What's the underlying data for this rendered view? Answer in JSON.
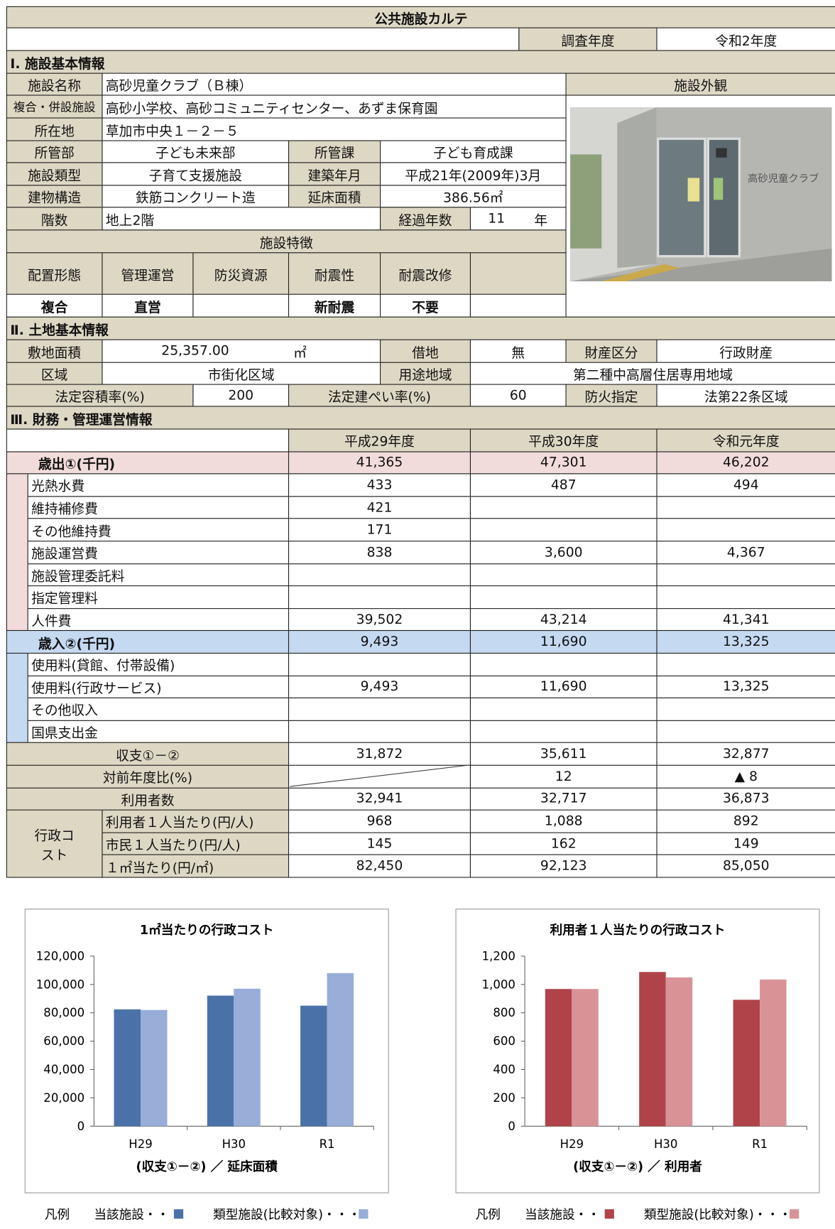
{
  "title": "公共施設カルテ",
  "survey": {
    "label": "調査年度",
    "value": "令和2年度"
  },
  "facility": {
    "heading": "Ⅰ. 施設基本情報",
    "name": {
      "label": "施設名称",
      "value": "高砂児童クラブ（Ｂ棟）"
    },
    "complex": {
      "label": "複合・併設施設",
      "value": "高砂小学校、高砂コミュニティセンター、あずま保育園"
    },
    "address": {
      "label": "所在地",
      "value": "草加市中央１－２－５"
    },
    "dept": {
      "label": "所管部",
      "value": "子ども未来部"
    },
    "section": {
      "label": "所管課",
      "value": "子ども育成課"
    },
    "kind": {
      "label": "施設類型",
      "value": "子育て支援施設"
    },
    "built": {
      "label": "建築年月",
      "value": "平成21年(2009年)3月"
    },
    "structure": {
      "label": "建物構造",
      "value": "鉄筋コンクリート造"
    },
    "floor_area": {
      "label": "延床面積",
      "value": "386.56㎡"
    },
    "floors": {
      "label": "階数",
      "value": "地上2階"
    },
    "age": {
      "label": "経過年数",
      "value": 11,
      "unit": "年"
    },
    "photo_label": "施設外観",
    "photo_sign": "高砂児童クラブ",
    "features": {
      "heading": "施設特徴",
      "labels": [
        "配置形態",
        "管理運営",
        "防災資源",
        "耐震性",
        "耐震改修"
      ],
      "values": [
        "複合",
        "直営",
        null,
        "新耐震",
        "不要"
      ]
    }
  },
  "land": {
    "heading": "Ⅱ. 土地基本情報",
    "site_area": {
      "label": "敷地面積",
      "value": "25,357.00",
      "unit": "㎡"
    },
    "lease": {
      "label": "借地",
      "value": "無"
    },
    "property": {
      "label": "財産区分",
      "value": "行政財産"
    },
    "zone": {
      "label": "区域",
      "value": "市街化区域"
    },
    "use_district": {
      "label": "用途地域",
      "value": "第二種中高層住居専用地域"
    },
    "far": {
      "label": "法定容積率(%)",
      "value": 200
    },
    "bcr": {
      "label": "法定建ぺい率(%)",
      "value": 60
    },
    "fire": {
      "label": "防火指定",
      "value": "法第22条区域"
    }
  },
  "finance": {
    "heading": "Ⅲ. 財務・管理運営情報",
    "years": [
      "平成29年度",
      "平成30年度",
      "令和元年度"
    ],
    "expenditure": {
      "label": "歳出①(千円)",
      "values": [
        "41,365",
        "47,301",
        "46,202"
      ],
      "items": [
        {
          "label": "光熱水費",
          "values": [
            "433",
            "487",
            "494"
          ]
        },
        {
          "label": "維持補修費",
          "values": [
            "421",
            null,
            null
          ]
        },
        {
          "label": "その他維持費",
          "values": [
            "171",
            null,
            null
          ]
        },
        {
          "label": "施設運営費",
          "values": [
            "838",
            "3,600",
            "4,367"
          ]
        },
        {
          "label": "施設管理委託料",
          "values": [
            null,
            null,
            null
          ]
        },
        {
          "label": "指定管理料",
          "values": [
            null,
            null,
            null
          ]
        },
        {
          "label": "人件費",
          "values": [
            "39,502",
            "43,214",
            "41,341"
          ]
        }
      ]
    },
    "revenue": {
      "label": "歳入②(千円)",
      "values": [
        "9,493",
        "11,690",
        "13,325"
      ],
      "items": [
        {
          "label": "使用料(貸館、付帯設備)",
          "values": [
            null,
            null,
            null
          ]
        },
        {
          "label": "使用料(行政サービス)",
          "values": [
            "9,493",
            "11,690",
            "13,325"
          ]
        },
        {
          "label": "その他収入",
          "values": [
            null,
            null,
            null
          ]
        },
        {
          "label": "国県支出金",
          "values": [
            null,
            null,
            null
          ]
        }
      ]
    },
    "balance": {
      "label": "収支①－②",
      "values": [
        "31,872",
        "35,611",
        "32,877"
      ]
    },
    "yoy": {
      "label": "対前年度比(%)",
      "values": [
        null,
        "12",
        "▲ 8"
      ]
    },
    "users": {
      "label": "利用者数",
      "values": [
        "32,941",
        "32,717",
        "36,873"
      ]
    },
    "admin_cost": {
      "label": "行政コスト",
      "items": [
        {
          "label": "利用者１人当たり(円/人)",
          "values": [
            "968",
            "1,088",
            "892"
          ]
        },
        {
          "label": "市民１人当たり(円/人)",
          "values": [
            "145",
            "162",
            "149"
          ]
        },
        {
          "label": "１㎡当たり(円/㎡)",
          "values": [
            "82,450",
            "92,123",
            "85,050"
          ]
        }
      ]
    }
  },
  "chart_data": [
    {
      "type": "bar",
      "title": "1㎡当たりの行政コスト",
      "xlabel": "(収支①－②) ／ 延床面積",
      "categories": [
        "H29",
        "H30",
        "R1"
      ],
      "series": [
        {
          "name": "当該施設・・・",
          "color": "#4a72a8",
          "values": [
            82450,
            92123,
            85050
          ]
        },
        {
          "name": "類型施設(比較対象)・・・",
          "color": "#98aed8",
          "values": [
            82000,
            97000,
            108000
          ]
        }
      ],
      "ylim": [
        0,
        120000
      ],
      "yticks": [
        0,
        {
          "value": 20000,
          "label": "20,000"
        },
        {
          "value": 40000,
          "label": "40,000"
        },
        {
          "value": 60000,
          "label": "60,000"
        },
        {
          "value": 80000,
          "label": "80,000"
        },
        {
          "value": 100000,
          "label": "100,000"
        },
        {
          "value": 120000,
          "label": "120,000"
        }
      ],
      "legend_title": "凡例"
    },
    {
      "type": "bar",
      "title": "利用者１人当たりの行政コスト",
      "xlabel": "(収支①－②) ／ 利用者",
      "categories": [
        "H29",
        "H30",
        "R1"
      ],
      "series": [
        {
          "name": "当該施設・・・",
          "color": "#b0434a",
          "values": [
            968,
            1088,
            892
          ]
        },
        {
          "name": "類型施設(比較対象)・・・",
          "color": "#d99397",
          "values": [
            968,
            1050,
            1035
          ]
        }
      ],
      "ylim": [
        0,
        1200
      ],
      "yticks": [
        0,
        200,
        400,
        600,
        800,
        {
          "value": 1000,
          "label": "1,000"
        },
        {
          "value": 1200,
          "label": "1,200"
        }
      ],
      "legend_title": "凡例"
    }
  ]
}
